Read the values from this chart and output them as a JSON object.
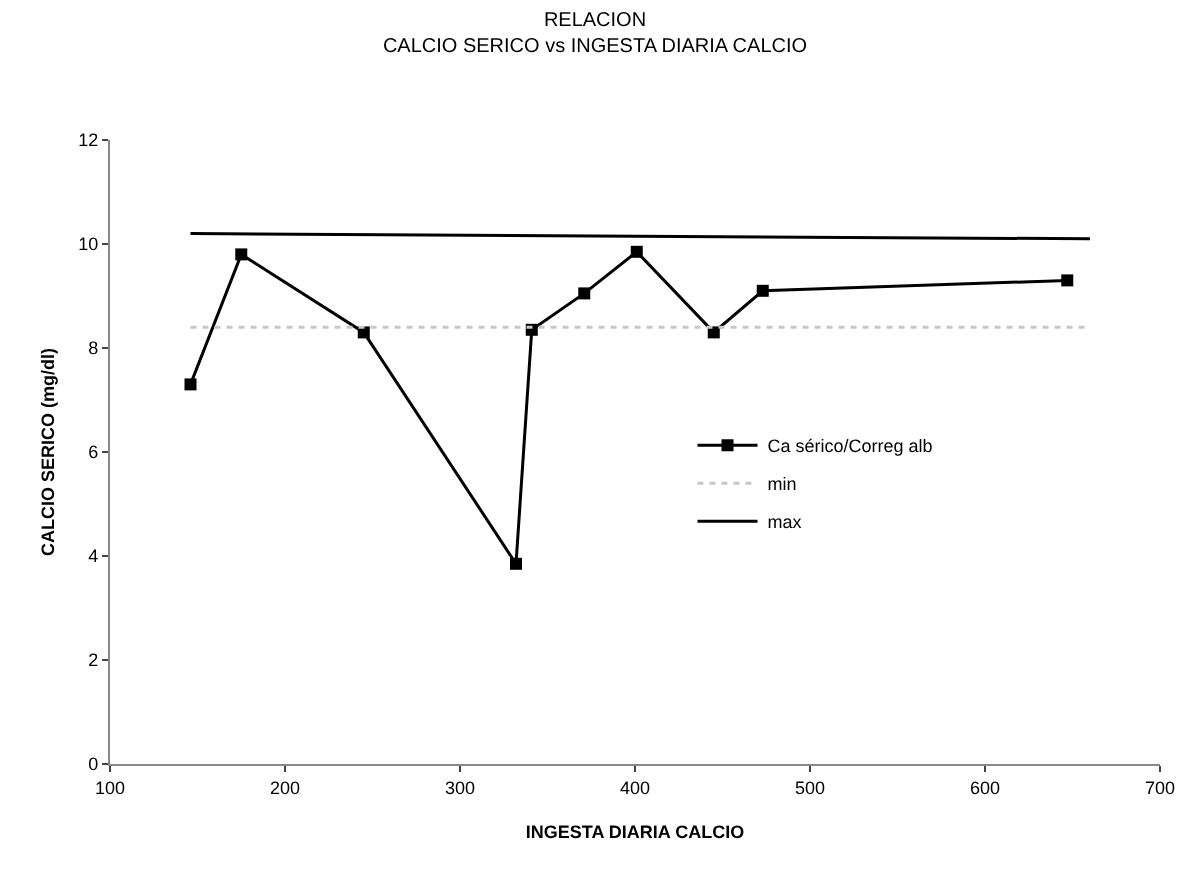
{
  "chart_data": {
    "type": "line",
    "title": "RELACION\nCALCIO SERICO vs INGESTA DIARIA CALCIO",
    "xlabel": "INGESTA DIARIA CALCIO",
    "ylabel": "CALCIO SERICO (mg/dl)",
    "xlim": [
      100,
      700
    ],
    "xticks": [
      100,
      200,
      300,
      400,
      500,
      600,
      700
    ],
    "ylim": [
      0,
      12
    ],
    "yticks": [
      0,
      2,
      4,
      6,
      8,
      10,
      12
    ],
    "grid": false,
    "legend": "right",
    "series": [
      {
        "name": "Ca sérico/Correg alb",
        "color": "#000000",
        "marker": "square",
        "line_style": "solid",
        "x": [
          146,
          175,
          245,
          332,
          341,
          371,
          401,
          445,
          473,
          647
        ],
        "values": [
          7.3,
          9.8,
          8.3,
          3.85,
          8.35,
          9.05,
          9.85,
          8.3,
          9.1,
          9.3
        ]
      },
      {
        "name": "min",
        "color": "#c8c8c8",
        "marker": "none",
        "line_style": "dotted",
        "x": [
          146,
          660
        ],
        "values": [
          8.4,
          8.4
        ]
      },
      {
        "name": "max",
        "color": "#000000",
        "marker": "none",
        "line_style": "solid",
        "x": [
          146,
          660
        ],
        "values": [
          10.2,
          10.1
        ]
      }
    ]
  }
}
